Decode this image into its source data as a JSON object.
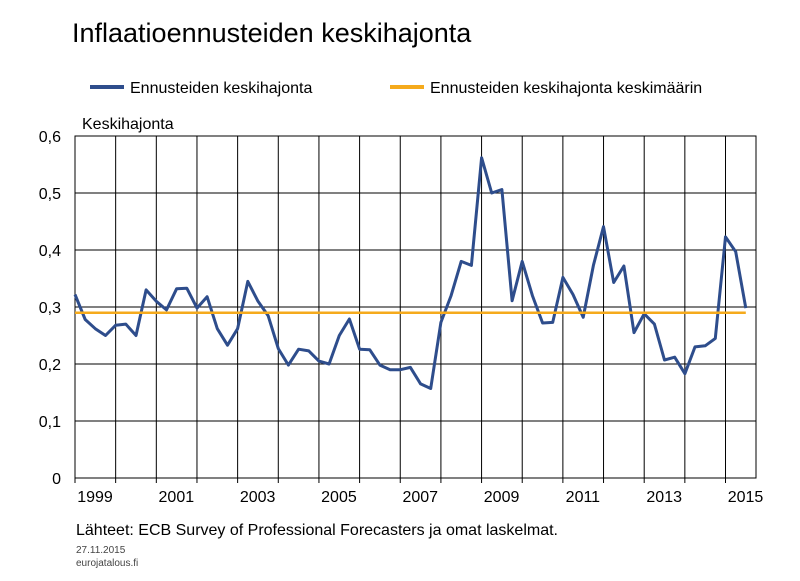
{
  "title": "Inflaatioennusteiden keskihajonta",
  "legend": [
    {
      "label": "Ennusteiden keskihajonta",
      "color": "#2e4d8c"
    },
    {
      "label": "Ennusteiden keskihajonta keskimäärin",
      "color": "#f5aa1c"
    }
  ],
  "footer": {
    "source": "Lähteet: ECB Survey of Professional Forecasters ja omat laskelmat.",
    "date": "27.11.2015",
    "site": "eurojatalous.fi"
  },
  "chart_data": {
    "type": "line",
    "title": "Inflaatioennusteiden keskihajonta",
    "ylabel": "Keskihajonta",
    "xlabel": "",
    "ylim": [
      0,
      0.6
    ],
    "xlim": [
      1999,
      2015.75
    ],
    "yticks": [
      0,
      0.1,
      0.2,
      0.3,
      0.4,
      0.5,
      0.6
    ],
    "ytick_labels": [
      "0",
      "0,1",
      "0,2",
      "0,3",
      "0,4",
      "0,5",
      "0,6"
    ],
    "xtick_labels": [
      "1999",
      "2001",
      "2003",
      "2005",
      "2007",
      "2009",
      "2011",
      "2013",
      "2015"
    ],
    "grid": true,
    "legend_position": "top",
    "series": [
      {
        "name": "Ennusteiden keskihajonta",
        "color": "#2e4d8c",
        "x": [
          1999.0,
          1999.25,
          1999.5,
          1999.75,
          2000.0,
          2000.25,
          2000.5,
          2000.75,
          2001.0,
          2001.25,
          2001.5,
          2001.75,
          2002.0,
          2002.25,
          2002.5,
          2002.75,
          2003.0,
          2003.25,
          2003.5,
          2003.75,
          2004.0,
          2004.25,
          2004.5,
          2004.75,
          2005.0,
          2005.25,
          2005.5,
          2005.75,
          2006.0,
          2006.25,
          2006.5,
          2006.75,
          2007.0,
          2007.25,
          2007.5,
          2007.75,
          2008.0,
          2008.25,
          2008.5,
          2008.75,
          2009.0,
          2009.25,
          2009.5,
          2009.75,
          2010.0,
          2010.25,
          2010.5,
          2010.75,
          2011.0,
          2011.25,
          2011.5,
          2011.75,
          2012.0,
          2012.25,
          2012.5,
          2012.75,
          2013.0,
          2013.25,
          2013.5,
          2013.75,
          2014.0,
          2014.25,
          2014.5,
          2014.75,
          2015.0,
          2015.25,
          2015.5
        ],
        "values": [
          0.322,
          0.278,
          0.262,
          0.25,
          0.268,
          0.27,
          0.25,
          0.33,
          0.31,
          0.295,
          0.332,
          0.333,
          0.298,
          0.318,
          0.262,
          0.233,
          0.262,
          0.345,
          0.31,
          0.285,
          0.227,
          0.198,
          0.226,
          0.223,
          0.205,
          0.2,
          0.25,
          0.279,
          0.226,
          0.225,
          0.198,
          0.19,
          0.19,
          0.194,
          0.165,
          0.157,
          0.273,
          0.32,
          0.38,
          0.373,
          0.562,
          0.5,
          0.506,
          0.311,
          0.38,
          0.32,
          0.272,
          0.273,
          0.352,
          0.322,
          0.282,
          0.373,
          0.441,
          0.343,
          0.372,
          0.255,
          0.288,
          0.27,
          0.207,
          0.212,
          0.183,
          0.23,
          0.232,
          0.245,
          0.423,
          0.397,
          0.298
        ]
      },
      {
        "name": "Ennusteiden keskihajonta keskimäärin",
        "color": "#f5aa1c",
        "x": [
          1999.0,
          2015.5
        ],
        "values": [
          0.29,
          0.29
        ]
      }
    ]
  }
}
